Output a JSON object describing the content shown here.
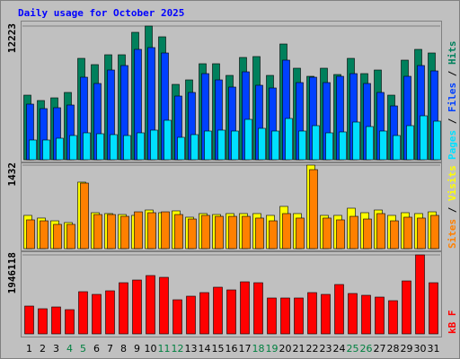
{
  "title": "Daily usage for October 2025",
  "categories": [
    "1",
    "2",
    "3",
    "4",
    "5",
    "6",
    "7",
    "8",
    "9",
    "10",
    "11",
    "12",
    "13",
    "14",
    "15",
    "16",
    "17",
    "18",
    "19",
    "20",
    "21",
    "22",
    "23",
    "24",
    "25",
    "26",
    "27",
    "28",
    "29",
    "30",
    "31"
  ],
  "category_colors": [
    "#000000",
    "#000000",
    "#000000",
    "#008040",
    "#008040",
    "#000000",
    "#000000",
    "#000000",
    "#000000",
    "#000000",
    "#008040",
    "#008040",
    "#000000",
    "#000000",
    "#000000",
    "#000000",
    "#000000",
    "#008040",
    "#008040",
    "#000000",
    "#000000",
    "#000000",
    "#000000",
    "#000000",
    "#008040",
    "#008040",
    "#000000",
    "#000000",
    "#000000",
    "#000000",
    "#000000"
  ],
  "chart_data": [
    {
      "type": "bar",
      "ylim": [
        0,
        12223
      ],
      "yticks": [
        12223
      ],
      "separator": " / ",
      "series": [
        {
          "name": "Hits",
          "color": "#00805c",
          "values": [
            5906,
            5414,
            5660,
            6153,
            9270,
            8696,
            9598,
            9598,
            11649,
            12223,
            11239,
            6891,
            7301,
            8778,
            8778,
            7711,
            9352,
            9434,
            7711,
            10582,
            8368,
            7629,
            8368,
            7793,
            9270,
            7875,
            8203,
            5906,
            9106,
            10090,
            9762
          ]
        },
        {
          "name": "Files",
          "color": "#0040ff",
          "values": [
            5086,
            4676,
            4758,
            5004,
            7547,
            6973,
            8203,
            8613,
            10090,
            10254,
            9762,
            5824,
            6153,
            7875,
            7301,
            6645,
            8039,
            6809,
            6563,
            9106,
            7055,
            7547,
            7055,
            7629,
            7875,
            6973,
            6153,
            4922,
            7629,
            8613,
            8121
          ]
        },
        {
          "name": "Pages",
          "color": "#00e0ff",
          "values": [
            1805,
            1805,
            1969,
            2215,
            2461,
            2379,
            2297,
            2215,
            2461,
            2707,
            3609,
            2051,
            2297,
            2625,
            2707,
            2625,
            3691,
            2871,
            2625,
            3773,
            2625,
            3117,
            2461,
            2543,
            3445,
            3035,
            2625,
            2215,
            3117,
            4019,
            3527
          ]
        }
      ]
    },
    {
      "type": "bar",
      "ylim": [
        0,
        1432
      ],
      "yticks": [
        1432
      ],
      "separator": " / ",
      "series": [
        {
          "name": "Visits",
          "color": "#ffff00",
          "values": [
            570,
            524,
            477,
            447,
            1140,
            616,
            601,
            585,
            570,
            662,
            616,
            647,
            539,
            601,
            585,
            601,
            601,
            601,
            570,
            724,
            601,
            1432,
            570,
            570,
            693,
            616,
            662,
            570,
            616,
            601,
            631
          ]
        },
        {
          "name": "Sites",
          "color": "#ff8000",
          "values": [
            493,
            477,
            416,
            416,
            1124,
            585,
            585,
            554,
            631,
            616,
            631,
            585,
            508,
            570,
            554,
            554,
            554,
            524,
            477,
            601,
            524,
            1355,
            524,
            493,
            554,
            508,
            601,
            477,
            539,
            524,
            570
          ]
        }
      ]
    },
    {
      "type": "bar",
      "ylim": [
        0,
        1946118
      ],
      "yticks": [
        1946118
      ],
      "separator": " / ",
      "series": [
        {
          "name": "kB F",
          "color": "#ff0000",
          "values": [
            685565,
            619220,
            663450,
            597105,
            1039405,
            973060,
            1061520,
            1260555,
            1326900,
            1437475,
            1393245,
            840370,
            928830,
            1017290,
            1149980,
            1083635,
            1282670,
            1260555,
            884600,
            884600,
            884600,
            1017290,
            973060,
            1216325,
            995175,
            950945,
            906715,
            818255,
            1304785,
            1946118,
            1260555
          ]
        }
      ]
    }
  ]
}
